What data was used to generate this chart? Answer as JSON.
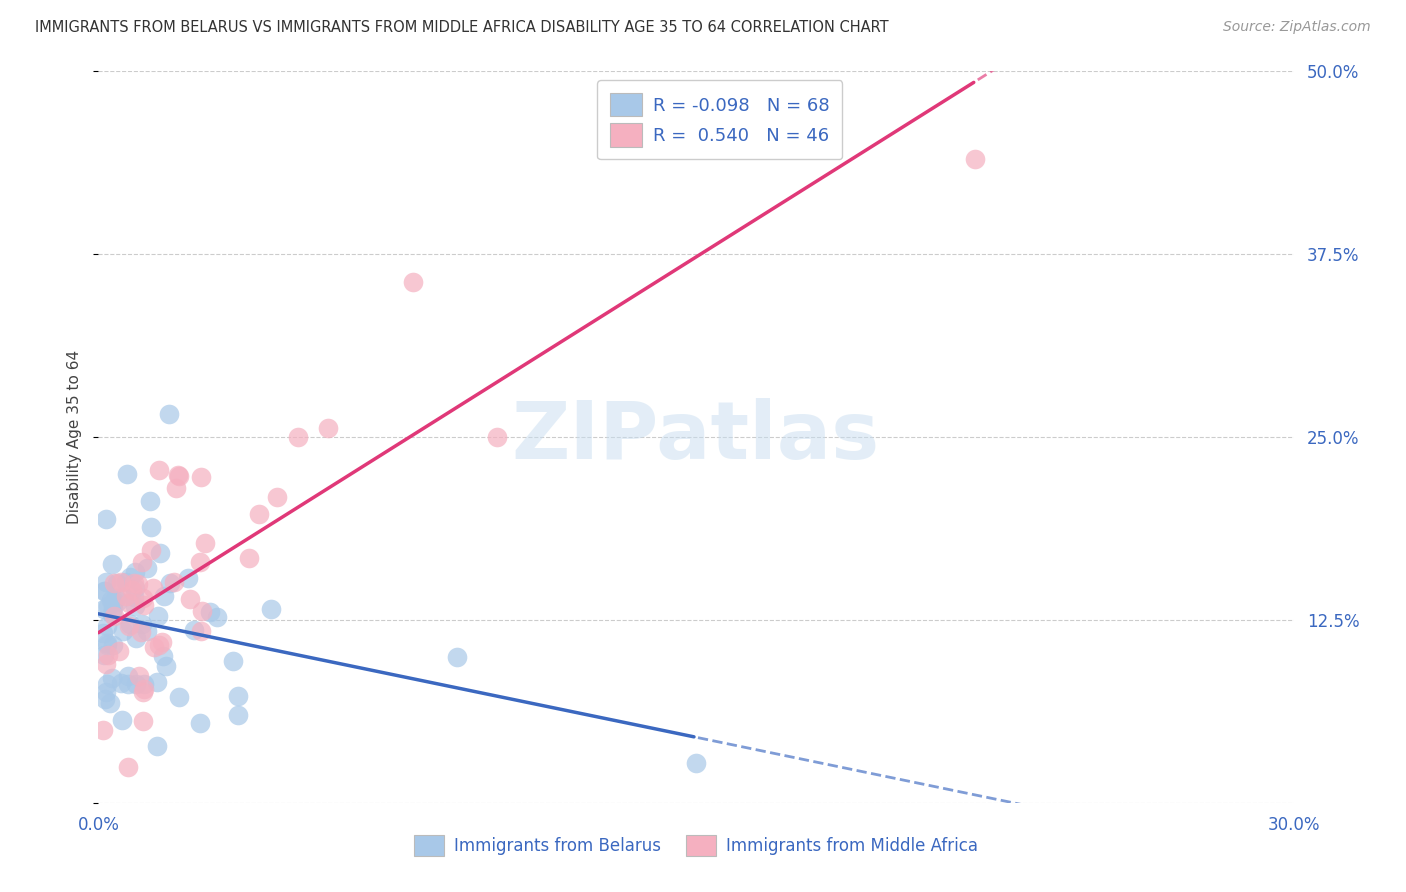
{
  "title": "IMMIGRANTS FROM BELARUS VS IMMIGRANTS FROM MIDDLE AFRICA DISABILITY AGE 35 TO 64 CORRELATION CHART",
  "source": "Source: ZipAtlas.com",
  "ylabel": "Disability Age 35 to 64",
  "xlim": [
    0.0,
    0.3
  ],
  "ylim": [
    0.0,
    0.5
  ],
  "R_belarus": -0.098,
  "N_belarus": 68,
  "R_africa": 0.54,
  "N_africa": 46,
  "color_belarus": "#a8c8e8",
  "color_africa": "#f5b0c0",
  "color_trendline_belarus": "#3b68c0",
  "color_trendline_africa": "#e03878",
  "color_text": "#3b68c0",
  "color_grid": "#cccccc",
  "label_belarus": "Immigrants from Belarus",
  "label_africa": "Immigrants from Middle Africa",
  "ytick_labels": [
    "",
    "12.5%",
    "25.0%",
    "37.5%",
    "50.0%"
  ],
  "ytick_vals": [
    0.0,
    0.125,
    0.25,
    0.375,
    0.5
  ],
  "xtick_labels": [
    "0.0%",
    "",
    "",
    "",
    "",
    "",
    "30.0%"
  ],
  "xtick_vals": [
    0.0,
    0.05,
    0.1,
    0.15,
    0.2,
    0.25,
    0.3
  ]
}
